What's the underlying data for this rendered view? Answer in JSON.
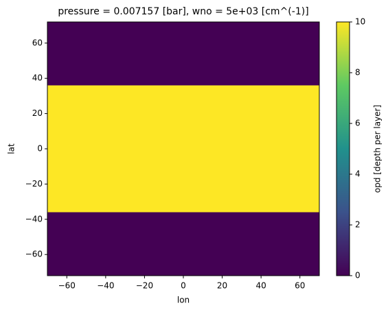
{
  "chart_data": {
    "type": "heatmap",
    "title": "pressure = 0.007157 [bar], wno = 5e+03 [cm^(-1)]",
    "x_label": "lon",
    "y_label": "lat",
    "x_edges": [
      -70,
      70
    ],
    "y_edges": [
      -72,
      -36,
      36,
      72
    ],
    "values": [
      [
        0
      ],
      [
        10
      ],
      [
        0
      ]
    ],
    "colormap": "viridis",
    "xlim": [
      -70,
      70
    ],
    "xticks": [
      {
        "value": -60,
        "label": "−60"
      },
      {
        "value": -40,
        "label": "−40"
      },
      {
        "value": -20,
        "label": "−20"
      },
      0,
      20,
      40,
      60
    ],
    "ylim": [
      -72,
      72
    ],
    "yticks": [
      {
        "value": -60,
        "label": "−60"
      },
      {
        "value": -40,
        "label": "−40"
      },
      {
        "value": -20,
        "label": "−20"
      },
      0,
      20,
      40,
      60
    ],
    "colorbar": {
      "label": "opd [depth per layer]",
      "lim": [
        0,
        10
      ],
      "ticks": [
        0,
        2,
        4,
        6,
        8,
        10
      ]
    }
  }
}
